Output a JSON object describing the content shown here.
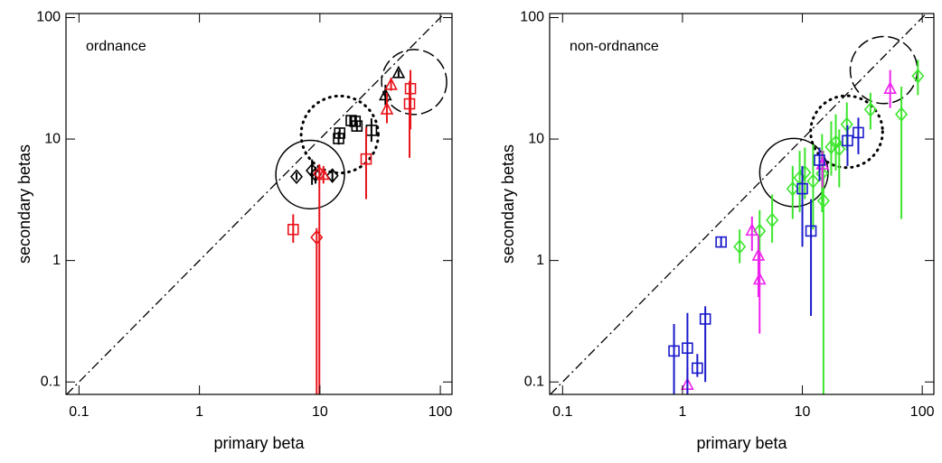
{
  "chart_data": [
    {
      "type": "scatter",
      "annotation": "ordnance",
      "x_label": "primary beta",
      "y_label": "secondary betas",
      "log_x": true,
      "log_y": true,
      "diagonal": true,
      "xlim": [
        0.078,
        125
      ],
      "ylim": [
        0.079,
        108
      ],
      "xticks": [
        0.1,
        1,
        10,
        100
      ],
      "yticks": [
        0.1,
        1,
        10,
        100
      ],
      "regions": [
        {
          "x": 8.3,
          "y": 5.1,
          "radius_decades": 0.285,
          "style": "solid"
        },
        {
          "x": 14.6,
          "y": 10.9,
          "radius_decades": 0.32,
          "style": "dotted"
        },
        {
          "x": 60.6,
          "y": 29.5,
          "radius_decades": 0.27,
          "style": "dashed"
        }
      ],
      "series": [
        {
          "color": "#000000",
          "marker": "diamond",
          "x": [
            6.4,
            8.6,
            9.2,
            12.7
          ],
          "values": [
            4.9,
            5.5,
            5.1,
            5.0
          ],
          "lower": [
            4.6,
            4.2,
            4.3,
            4.4
          ],
          "upper": [
            5.3,
            6.8,
            5.9,
            5.7
          ]
        },
        {
          "color": "#000000",
          "marker": "square",
          "x": [
            14.3,
            14.6,
            18.2,
            19.6,
            20.3,
            26.8
          ],
          "values": [
            10.1,
            11.2,
            14.2,
            14.0,
            12.8,
            11.8
          ],
          "lower": [
            9.0,
            10,
            13,
            12.8,
            11.5,
            9.5
          ],
          "upper": [
            11.5,
            12.3,
            15.5,
            15.3,
            14.2,
            14.8
          ]
        },
        {
          "color": "#000000",
          "marker": "triangle",
          "x": [
            35,
            45
          ],
          "values": [
            23,
            35
          ],
          "lower": [
            19,
            32
          ],
          "upper": [
            28,
            37
          ]
        },
        {
          "color": "#e8151b",
          "marker": "diamond",
          "x": [
            9.4,
            9.9
          ],
          "values": [
            1.55,
            5.2
          ],
          "lower": [
            0.07,
            0.07
          ],
          "upper": [
            1.85,
            6.2
          ]
        },
        {
          "color": "#e8151b",
          "marker": "triangle",
          "x": [
            10.7,
            36,
            39
          ],
          "values": [
            5.1,
            17.6,
            28
          ],
          "lower": [
            4.3,
            13.5,
            25
          ],
          "upper": [
            6,
            24,
            32
          ]
        },
        {
          "color": "#e8151b",
          "marker": "square",
          "x": [
            6.0,
            24.2,
            55.5,
            56.5
          ],
          "values": [
            1.8,
            6.85,
            19.5,
            26
          ],
          "lower": [
            1.4,
            3.2,
            7,
            12
          ],
          "upper": [
            2.4,
            12.5,
            30,
            37
          ]
        }
      ]
    },
    {
      "type": "scatter",
      "annotation": "non-ordnance",
      "x_label": "primary beta",
      "y_label": "secondary betas",
      "log_x": true,
      "log_y": true,
      "diagonal": true,
      "xlim": [
        0.078,
        125
      ],
      "ylim": [
        0.079,
        108
      ],
      "xticks": [
        0.1,
        1,
        10,
        100
      ],
      "yticks": [
        0.1,
        1,
        10,
        100
      ],
      "regions": [
        {
          "x": 8.5,
          "y": 5.3,
          "radius_decades": 0.285,
          "style": "solid"
        },
        {
          "x": 23.4,
          "y": 11.5,
          "radius_decades": 0.3,
          "style": "dotted"
        },
        {
          "x": 47.8,
          "y": 37,
          "radius_decades": 0.28,
          "style": "dashed"
        }
      ],
      "series": [
        {
          "color": "#3ce62d",
          "marker": "diamond",
          "x": [
            3.0,
            4.4,
            5.6,
            8.3,
            9.5,
            10.5,
            12.3,
            15,
            14.6,
            17.4,
            19,
            20.3,
            23.5,
            37,
            67,
            92
          ],
          "values": [
            1.3,
            1.75,
            2.15,
            3.9,
            4.8,
            5.3,
            4.5,
            3.1,
            5.2,
            8.6,
            9.4,
            8.3,
            13.2,
            17.5,
            16,
            33
          ],
          "lower": [
            0.95,
            1.2,
            1.4,
            2.2,
            2.5,
            3.2,
            1.8,
            0.07,
            2.5,
            5,
            5.5,
            4,
            8,
            12,
            2.2,
            23
          ],
          "upper": [
            1.8,
            2.6,
            3.5,
            6,
            8,
            8.5,
            9,
            8,
            11,
            14,
            16,
            12,
            20,
            24,
            27,
            45
          ]
        },
        {
          "color": "#ee22ee",
          "marker": "triangle",
          "x": [
            1.1,
            3.8,
            4.3,
            4.4,
            14.7,
            54
          ],
          "values": [
            0.095,
            1.77,
            1.1,
            0.7,
            6.2,
            26
          ],
          "lower": [
            0.08,
            1.2,
            0.5,
            0.25,
            4,
            18
          ],
          "upper": [
            0.13,
            2.3,
            1.6,
            1.2,
            8,
            37
          ]
        },
        {
          "color": "#1a1acc",
          "marker": "square",
          "x": [
            0.85,
            1.1,
            1.33,
            1.55,
            2.1,
            11.8,
            10,
            13.9,
            23.8,
            29.3
          ],
          "values": [
            0.18,
            0.19,
            0.13,
            0.33,
            1.42,
            1.75,
            3.9,
            6.7,
            9.7,
            11.3
          ],
          "lower": [
            0.07,
            0.07,
            0.11,
            0.1,
            1.3,
            0.35,
            1.3,
            4.5,
            6,
            7.5
          ],
          "upper": [
            0.3,
            0.37,
            0.17,
            0.42,
            1.55,
            3.2,
            6,
            8.5,
            13,
            15
          ]
        }
      ]
    }
  ]
}
